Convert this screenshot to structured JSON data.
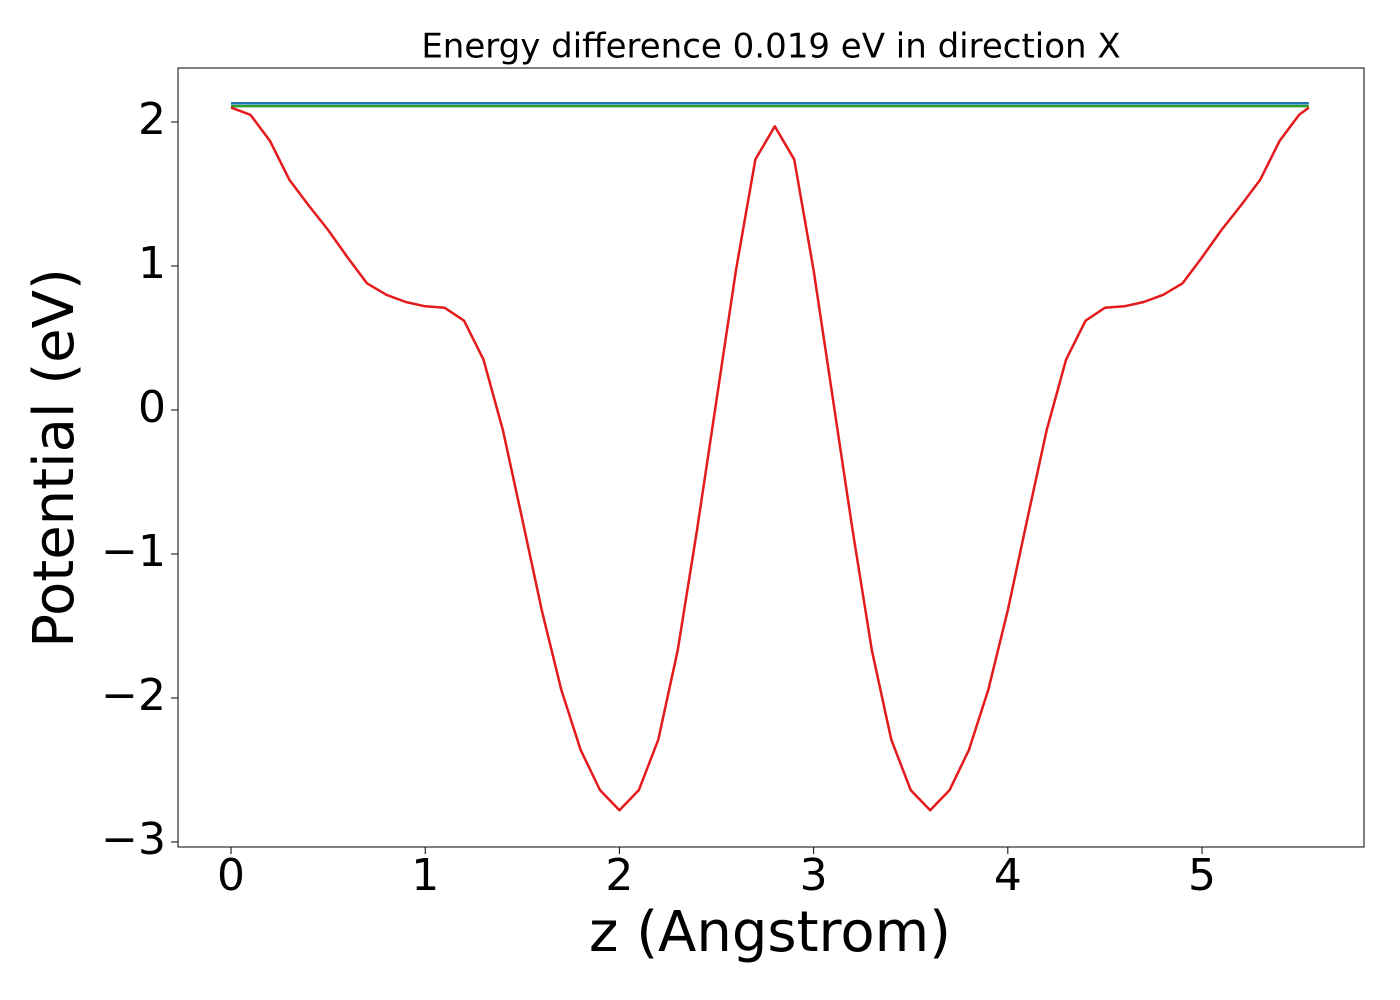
{
  "chart_data": {
    "type": "line",
    "title": "Energy difference 0.019 eV in direction X",
    "xlabel": "z (Angstrom)",
    "ylabel": "Potential (eV)",
    "xlim": [
      -0.273,
      5.834
    ],
    "ylim": [
      -3.035,
      2.375
    ],
    "xticks": [
      0,
      1,
      2,
      3,
      4,
      5
    ],
    "yticks": [
      {
        "value": -3,
        "label": "−3"
      },
      {
        "value": -2,
        "label": "−2"
      },
      {
        "value": -1,
        "label": "−1"
      },
      0,
      1,
      2
    ],
    "series": [
      {
        "color": "#1f77b4",
        "x": [
          0,
          5.55
        ],
        "values": [
          2.13,
          2.13
        ]
      },
      {
        "color": "#2ca02c",
        "x": [
          0,
          5.55
        ],
        "values": [
          2.11,
          2.11
        ]
      },
      {
        "color": "#e41a1c",
        "x": [
          0,
          0.1,
          0.2,
          0.3,
          0.4,
          0.5,
          0.6,
          0.7,
          0.8,
          0.9,
          1.0,
          1.1,
          1.2,
          1.3,
          1.4,
          1.5,
          1.6,
          1.7,
          1.8,
          1.9,
          2.0,
          2.1,
          2.2,
          2.3,
          2.4,
          2.5,
          2.6,
          2.7,
          2.8,
          2.9,
          3.0,
          3.1,
          3.2,
          3.3,
          3.4,
          3.5,
          3.6,
          3.7,
          3.8,
          3.9,
          4.0,
          4.1,
          4.2,
          4.3,
          4.4,
          4.5,
          4.6,
          4.7,
          4.8,
          4.9,
          5.0,
          5.1,
          5.2,
          5.3,
          5.4,
          5.5,
          5.55
        ],
        "values": [
          2.1,
          2.05,
          1.87,
          1.6,
          1.42,
          1.25,
          1.06,
          0.88,
          0.8,
          0.75,
          0.72,
          0.71,
          0.62,
          0.35,
          -0.14,
          -0.76,
          -1.39,
          -1.94,
          -2.36,
          -2.64,
          -2.78,
          -2.64,
          -2.29,
          -1.67,
          -0.83,
          0.07,
          0.97,
          1.74,
          1.97,
          1.74,
          0.97,
          0.07,
          -0.83,
          -1.67,
          -2.29,
          -2.64,
          -2.78,
          -2.64,
          -2.36,
          -1.94,
          -1.39,
          -0.76,
          -0.14,
          0.35,
          0.62,
          0.71,
          0.72,
          0.75,
          0.8,
          0.88,
          1.06,
          1.25,
          1.42,
          1.6,
          1.87,
          2.05,
          2.1
        ]
      }
    ]
  }
}
